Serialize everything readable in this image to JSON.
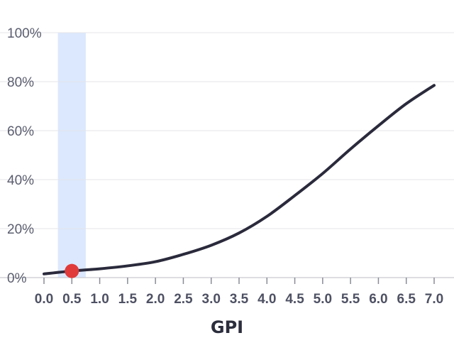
{
  "chart_data": {
    "type": "line",
    "xlabel": "GPI",
    "ylabel": "",
    "title": "",
    "xlim": [
      0.0,
      7.0
    ],
    "ylim": [
      0,
      100
    ],
    "x_ticks": [
      "0.0",
      "0.5",
      "1.0",
      "1.5",
      "2.0",
      "2.5",
      "3.0",
      "3.5",
      "4.0",
      "4.5",
      "5.0",
      "5.5",
      "6.0",
      "6.5",
      "7.0"
    ],
    "y_ticks": [
      "0%",
      "20%",
      "40%",
      "60%",
      "80%",
      "100%"
    ],
    "grid": "horizontal",
    "series": [
      {
        "color": "#2a2a3c",
        "x": [
          0.0,
          0.5,
          1.0,
          1.5,
          2.0,
          2.5,
          3.0,
          3.5,
          4.0,
          4.5,
          5.0,
          5.5,
          6.0,
          6.5,
          7.0
        ],
        "y": [
          1.5,
          2.7,
          3.6,
          4.8,
          6.5,
          9.5,
          13.2,
          18.2,
          25,
          33.5,
          42.5,
          52.5,
          62,
          71,
          78.5
        ]
      }
    ],
    "highlight_band": {
      "x_start": 0.25,
      "x_end": 0.75,
      "color": "#dce8fd"
    },
    "marker": {
      "x": 0.5,
      "y": 2.7,
      "color": "#e03a3a"
    }
  }
}
